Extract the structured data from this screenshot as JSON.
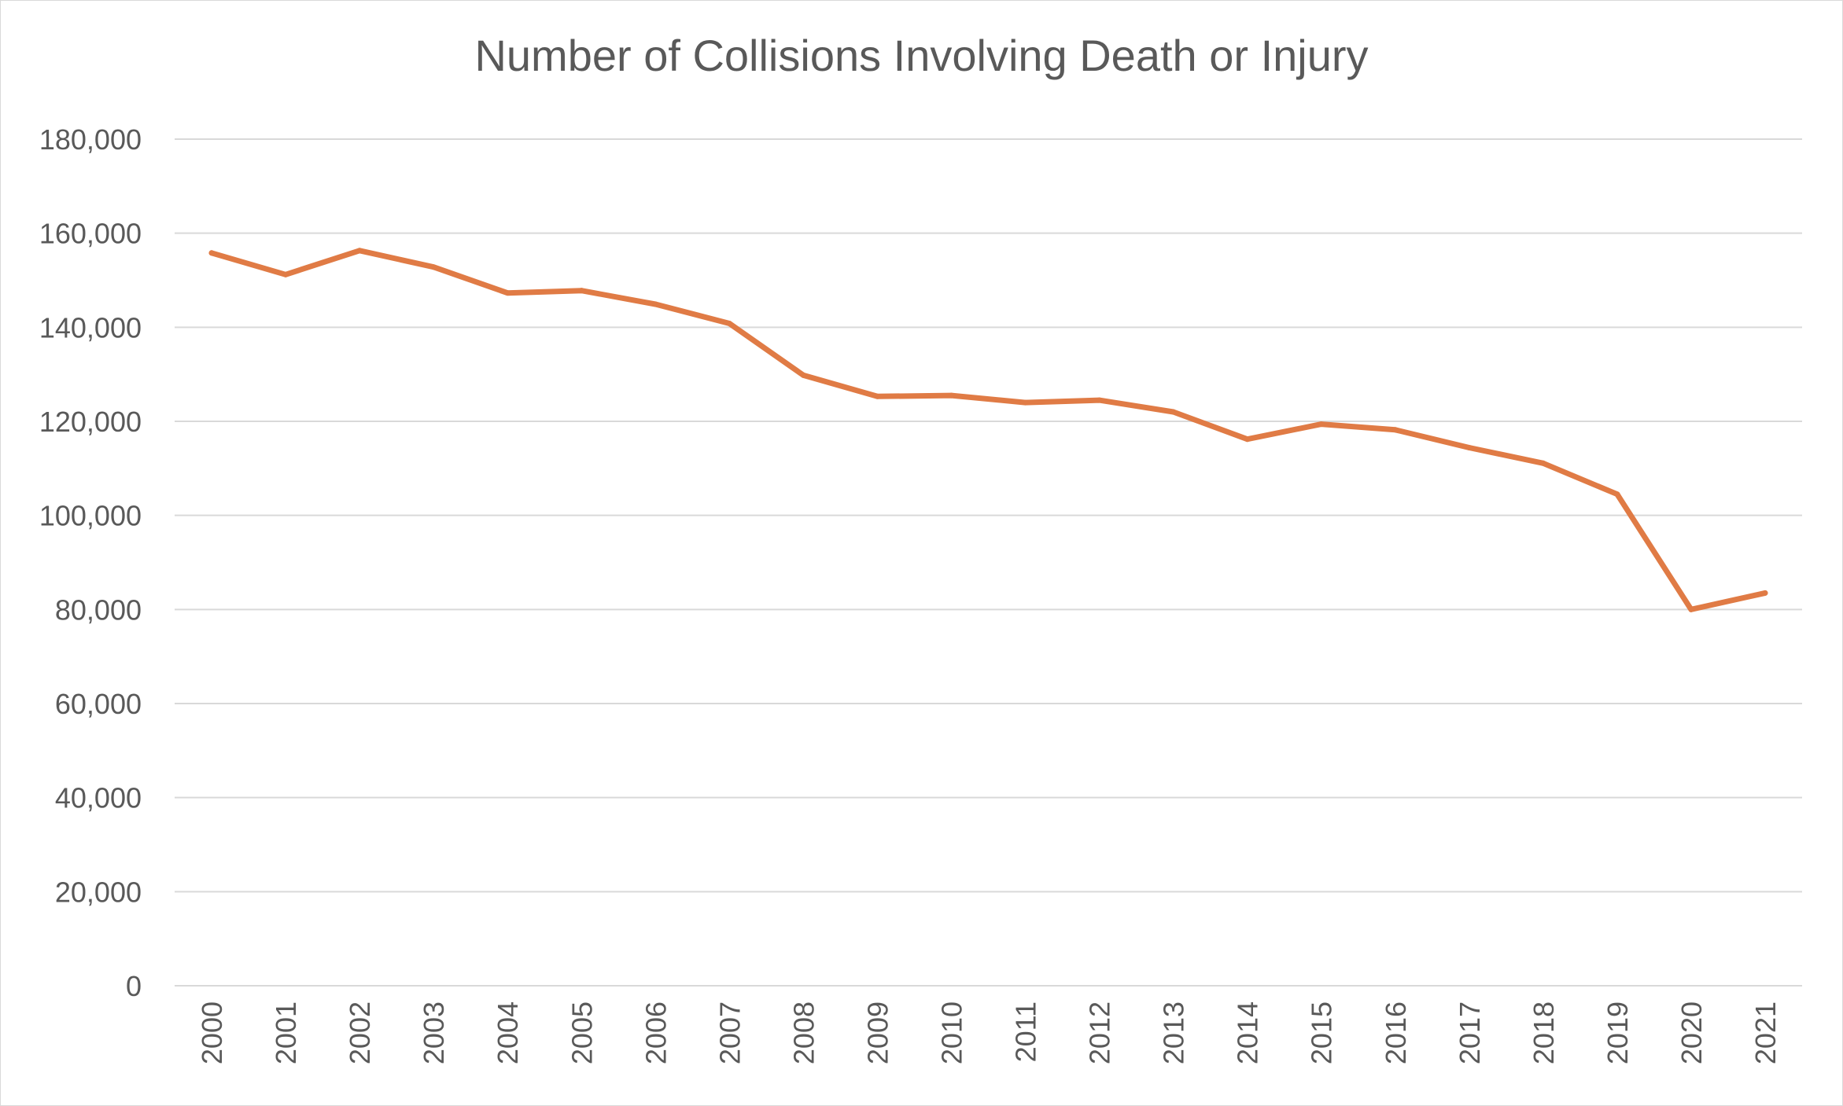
{
  "chart_data": {
    "type": "line",
    "title": "Number of Collisions Involving Death or Injury",
    "xlabel": "",
    "ylabel": "",
    "ylim": [
      0,
      180000
    ],
    "y_ticks": [
      0,
      20000,
      40000,
      60000,
      80000,
      100000,
      120000,
      140000,
      160000,
      180000
    ],
    "y_tick_labels": [
      "0",
      "20,000",
      "40,000",
      "60,000",
      "80,000",
      "100,000",
      "120,000",
      "140,000",
      "160,000",
      "180,000"
    ],
    "grid": true,
    "legend": "none",
    "categories": [
      "2000",
      "2001",
      "2002",
      "2003",
      "2004",
      "2005",
      "2006",
      "2007",
      "2008",
      "2009",
      "2010",
      "2011",
      "2012",
      "2013",
      "2014",
      "2015",
      "2016",
      "2017",
      "2018",
      "2019",
      "2020",
      "2021"
    ],
    "series": [
      {
        "color": "#e07b45",
        "values": [
          155800,
          151200,
          156300,
          152800,
          147300,
          147800,
          144900,
          140800,
          129800,
          125300,
          125500,
          124000,
          124500,
          122000,
          116200,
          119400,
          118200,
          114400,
          111100,
          104500,
          80000,
          83500
        ]
      }
    ]
  }
}
